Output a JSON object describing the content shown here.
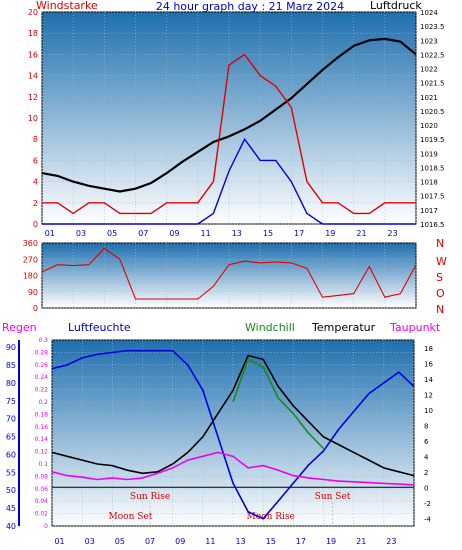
{
  "title": "24 hour graph day : 21 Marz 2024",
  "colors": {
    "bg_top": "#1e6fae",
    "bg_bottom": "#ffffff",
    "red": "#e00000",
    "blue": "#0000dd",
    "black": "#000000",
    "magenta": "#ee00ee",
    "green": "#1a8a1a",
    "axis_blue": "#0000cc"
  },
  "chart_data": [
    {
      "id": "wind",
      "type": "line",
      "left_label": "Windstarke",
      "right_label": "Luftdruck",
      "x_ticks": [
        "01",
        "03",
        "05",
        "07",
        "09",
        "11",
        "13",
        "15",
        "17",
        "19",
        "21",
        "23"
      ],
      "y_left_ticks": [
        "0",
        "2",
        "4",
        "6",
        "8",
        "10",
        "12",
        "14",
        "16",
        "18",
        "20"
      ],
      "y_left_lim": [
        0,
        20
      ],
      "y_right_ticks": [
        "1016.5",
        "1017",
        "1017.5",
        "1018",
        "1018.5",
        "1019",
        "1019.5",
        "1020",
        "1020.5",
        "1021",
        "1021.5",
        "1022",
        "1022.5",
        "1023",
        "1023.5",
        "1024"
      ],
      "y_right_lim": [
        1016.5,
        1024
      ],
      "series": [
        {
          "color": "black",
          "axis": "right",
          "x": [
            0,
            1,
            2,
            3,
            4,
            5,
            6,
            7,
            8,
            9,
            10,
            11,
            12,
            13,
            14,
            15,
            16,
            17,
            18,
            19,
            20,
            21,
            22,
            23,
            24
          ],
          "y": [
            1018.3,
            1018.2,
            1018.0,
            1017.85,
            1017.75,
            1017.65,
            1017.75,
            1017.95,
            1018.3,
            1018.7,
            1019.05,
            1019.4,
            1019.6,
            1019.85,
            1020.15,
            1020.55,
            1020.95,
            1021.45,
            1021.95,
            1022.4,
            1022.8,
            1023.0,
            1023.05,
            1022.95,
            1022.5
          ]
        },
        {
          "color": "red",
          "axis": "left",
          "x": [
            0,
            1,
            2,
            3,
            4,
            5,
            6,
            7,
            8,
            9,
            10,
            11,
            12,
            13,
            14,
            15,
            16,
            17,
            18,
            19,
            20,
            21,
            22,
            23,
            24
          ],
          "y": [
            2,
            2,
            1,
            2,
            2,
            1,
            1,
            1,
            2,
            2,
            2,
            4,
            15,
            16,
            14,
            13,
            11,
            4,
            2,
            2,
            1,
            1,
            2,
            2,
            2
          ]
        },
        {
          "color": "blue",
          "axis": "left",
          "x": [
            0,
            1,
            2,
            3,
            4,
            5,
            6,
            7,
            8,
            9,
            10,
            11,
            12,
            13,
            14,
            15,
            16,
            17,
            18,
            19,
            20,
            21,
            22,
            23,
            24
          ],
          "y": [
            0,
            0,
            0,
            0,
            0,
            0,
            0,
            0,
            0,
            0,
            0,
            1,
            5,
            8,
            6,
            6,
            4,
            1,
            0,
            0,
            0,
            0,
            0,
            0,
            0
          ]
        }
      ]
    },
    {
      "id": "direction",
      "type": "line",
      "y_left_ticks": [
        "0",
        "90",
        "180",
        "270",
        "360"
      ],
      "y_left_lim": [
        0,
        360
      ],
      "compass": [
        "N",
        "W",
        "S",
        "O",
        "N"
      ],
      "series": [
        {
          "color": "red",
          "x": [
            0,
            1,
            2,
            3,
            4,
            5,
            6,
            7,
            8,
            9,
            10,
            11,
            12,
            13,
            14,
            15,
            16,
            17,
            18,
            19,
            20,
            21,
            22,
            23,
            24
          ],
          "y": [
            200,
            240,
            235,
            240,
            330,
            270,
            50,
            50,
            50,
            50,
            50,
            120,
            240,
            260,
            250,
            255,
            250,
            220,
            60,
            70,
            80,
            230,
            60,
            80,
            240
          ]
        }
      ]
    },
    {
      "id": "temperature",
      "type": "line",
      "labels": {
        "regen": "Regen",
        "luftfeuchte": "Luftfeuchte",
        "windchill": "Windchill",
        "temperatur": "Temperatur",
        "taupunkt": "Taupunkt"
      },
      "y_humidity_ticks": [
        "40",
        "45",
        "50",
        "55",
        "60",
        "65",
        "70",
        "75",
        "80",
        "85",
        "90"
      ],
      "y_humidity_lim": [
        40,
        92
      ],
      "y_rain_ticks": [
        "0",
        "0.02",
        "0.04",
        "0.06",
        "0.08",
        "0.1",
        "0.12",
        "0.14",
        "0.16",
        "0.18",
        "0.2",
        "0.22",
        "0.24",
        "0.26",
        "0.28",
        "0.3"
      ],
      "y_rain_lim": [
        0,
        0.3
      ],
      "y_temp_ticks": [
        "-4",
        "-2",
        "0",
        "2",
        "4",
        "6",
        "8",
        "10",
        "12",
        "14",
        "16",
        "18"
      ],
      "y_temp_lim": [
        -5,
        19
      ],
      "annotations": {
        "sun_rise": "Sun Rise",
        "sun_set": "Sun Set",
        "moon_set": "Moon Set",
        "moon_rise": "Moon Rise"
      },
      "series": [
        {
          "name": "Luftfeuchte",
          "color": "blue",
          "x": [
            0,
            1,
            2,
            3,
            4,
            5,
            6,
            7,
            8,
            9,
            10,
            11,
            12,
            13,
            14,
            15,
            16,
            17,
            18,
            19,
            20,
            21,
            22,
            23,
            24
          ],
          "y": [
            84,
            85,
            87,
            88,
            88.5,
            89,
            89,
            89,
            89,
            85,
            78,
            65,
            52,
            44,
            42,
            47,
            52,
            57,
            61,
            67,
            72,
            77,
            80,
            83,
            79
          ]
        },
        {
          "name": "Temperatur",
          "color": "black",
          "x": [
            0,
            1,
            2,
            3,
            4,
            5,
            6,
            7,
            8,
            9,
            10,
            11,
            12,
            13,
            14,
            15,
            16,
            17,
            18,
            19,
            20,
            21,
            22,
            23,
            24
          ],
          "y": [
            4.5,
            4.0,
            3.5,
            3.0,
            2.8,
            2.2,
            1.8,
            2.0,
            3.0,
            4.5,
            6.5,
            9.5,
            12.5,
            17.0,
            16.5,
            13.0,
            10.5,
            8.5,
            6.5,
            5.5,
            4.5,
            3.5,
            2.5,
            2.0,
            1.5
          ]
        },
        {
          "name": "Taupunkt",
          "color": "magenta",
          "x": [
            0,
            1,
            2,
            3,
            4,
            5,
            6,
            7,
            8,
            9,
            10,
            11,
            12,
            13,
            14,
            15,
            16,
            17,
            18,
            19,
            20,
            21,
            22,
            23,
            24
          ],
          "y": [
            2.0,
            1.5,
            1.3,
            1.0,
            1.2,
            1.0,
            1.2,
            1.8,
            2.5,
            3.5,
            4.0,
            4.5,
            4.0,
            2.5,
            2.8,
            2.2,
            1.5,
            1.2,
            1.0,
            0.8,
            0.7,
            0.6,
            0.5,
            0.4,
            0.3
          ]
        },
        {
          "name": "Windchill",
          "color": "green",
          "x": [
            12,
            13,
            14,
            15,
            16,
            17,
            18
          ],
          "y": [
            11.0,
            16.5,
            15.5,
            11.5,
            9.5,
            7.0,
            5.0
          ]
        }
      ]
    }
  ]
}
